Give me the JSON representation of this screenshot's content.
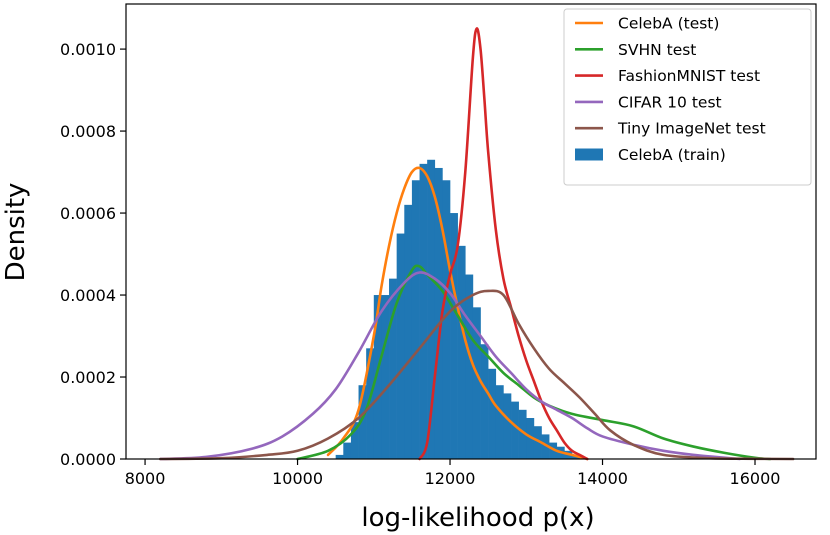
{
  "chart_data": {
    "type": "histogram_with_density_lines",
    "xlabel": "log-likelihood p(x)",
    "ylabel": "Density",
    "xlim": [
      7750,
      16800
    ],
    "ylim": [
      0,
      0.00111
    ],
    "xticks": [
      8000,
      10000,
      12000,
      14000,
      16000
    ],
    "xtick_labels": [
      "8000",
      "10000",
      "12000",
      "14000",
      "16000"
    ],
    "yticks": [
      0,
      0.0002,
      0.0004,
      0.0006,
      0.0008,
      0.001
    ],
    "ytick_labels": [
      "0.0000",
      "0.0002",
      "0.0004",
      "0.0006",
      "0.0008",
      "0.0010"
    ],
    "legend_position": "upper-right",
    "histogram": {
      "name": "CelebA (train)",
      "color": "#1f77b4",
      "bin_edges_start": 10500,
      "bin_width": 100,
      "values": [
        1e-05,
        4e-05,
        9e-05,
        0.00018,
        0.00027,
        0.0004,
        0.0004,
        0.00044,
        0.00055,
        0.00062,
        0.00068,
        0.00072,
        0.00073,
        0.00071,
        0.00068,
        0.0006,
        0.00052,
        0.00045,
        0.00037,
        0.00028,
        0.00022,
        0.00018,
        0.00016,
        0.00014,
        0.00012,
        0.0001,
        8e-05,
        6e-05,
        4e-05,
        3e-05,
        2e-05,
        1e-05
      ]
    },
    "series": [
      {
        "name": "CelebA (test)",
        "color": "#ff7f0e",
        "x": [
          10400,
          10600,
          10800,
          11000,
          11100,
          11200,
          11300,
          11400,
          11500,
          11600,
          11700,
          11800,
          11900,
          12000,
          12100,
          12200,
          12300,
          12400,
          12500,
          12600,
          12800,
          13000,
          13200,
          13400,
          13600,
          13800
        ],
        "y": [
          1e-05,
          5e-05,
          0.00012,
          0.0003,
          0.00042,
          0.00052,
          0.0006,
          0.00066,
          0.0007,
          0.00071,
          0.00069,
          0.00064,
          0.00056,
          0.00046,
          0.00037,
          0.00029,
          0.00023,
          0.00019,
          0.00016,
          0.00013,
          9e-05,
          6e-05,
          4e-05,
          2e-05,
          1e-05,
          0
        ]
      },
      {
        "name": "SVHN test",
        "color": "#2ca02c",
        "x": [
          10000,
          10400,
          10700,
          10900,
          11100,
          11300,
          11500,
          11600,
          11700,
          11900,
          12100,
          12300,
          12500,
          12700,
          12900,
          13100,
          13300,
          13600,
          14000,
          14400,
          14800,
          15200,
          15600,
          16000,
          16200
        ],
        "y": [
          0,
          2e-05,
          6e-05,
          0.00012,
          0.00025,
          0.00038,
          0.00046,
          0.00047,
          0.00045,
          0.00041,
          0.00035,
          0.00029,
          0.00025,
          0.00021,
          0.00018,
          0.00015,
          0.00013,
          0.00011,
          9.5e-05,
          8e-05,
          5e-05,
          3e-05,
          1.5e-05,
          3e-06,
          0
        ]
      },
      {
        "name": "FashionMNIST test",
        "color": "#d62728",
        "x": [
          11600,
          11700,
          11800,
          11900,
          12000,
          12100,
          12200,
          12300,
          12350,
          12400,
          12450,
          12500,
          12600,
          12700,
          12800,
          12900,
          13000,
          13100,
          13200,
          13300,
          13400,
          13500,
          13600,
          13700,
          13800
        ],
        "y": [
          0,
          4e-05,
          0.0002,
          0.00036,
          0.00045,
          0.00052,
          0.0007,
          0.00098,
          0.00105,
          0.001,
          0.00088,
          0.00075,
          0.00056,
          0.00044,
          0.00037,
          0.0003,
          0.00024,
          0.00019,
          0.00014,
          0.0001,
          7e-05,
          4e-05,
          2e-05,
          1e-05,
          0
        ]
      },
      {
        "name": "CIFAR 10 test",
        "color": "#9467bd",
        "x": [
          8200,
          8800,
          9400,
          9800,
          10200,
          10500,
          10800,
          11100,
          11400,
          11600,
          11800,
          12000,
          12200,
          12400,
          12600,
          12800,
          13000,
          13200,
          13400,
          13600,
          13800,
          14000,
          14400,
          14800,
          15200,
          15800
        ],
        "y": [
          0,
          5e-06,
          2.5e-05,
          5.5e-05,
          0.00011,
          0.00017,
          0.00026,
          0.00036,
          0.00043,
          0.000455,
          0.00044,
          0.000405,
          0.00035,
          0.0003,
          0.00025,
          0.00021,
          0.00017,
          0.00014,
          0.00012,
          0.0001,
          7.5e-05,
          5.5e-05,
          3.5e-05,
          2e-05,
          1e-05,
          0
        ]
      },
      {
        "name": "Tiny ImageNet test",
        "color": "#8c564b",
        "x": [
          8200,
          9000,
          9600,
          10000,
          10400,
          10800,
          11200,
          11600,
          12000,
          12300,
          12500,
          12700,
          12900,
          13100,
          13300,
          13500,
          13700,
          13900,
          14100,
          14400,
          14800,
          15400,
          16000,
          16500
        ],
        "y": [
          0,
          2e-06,
          1e-05,
          2e-05,
          5e-05,
          0.0001,
          0.00018,
          0.00027,
          0.00036,
          0.0004,
          0.00041,
          0.0004,
          0.00033,
          0.00027,
          0.00022,
          0.000185,
          0.00015,
          0.00011,
          7e-05,
          3.5e-05,
          1e-05,
          2e-06,
          5e-07,
          0
        ]
      }
    ]
  }
}
